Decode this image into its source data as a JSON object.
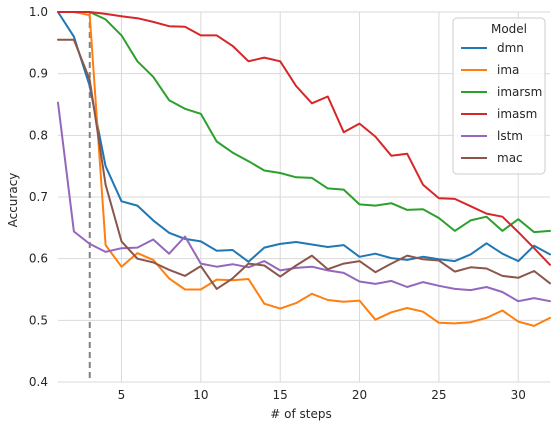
{
  "chart_data": {
    "type": "line",
    "xlabel": "# of steps",
    "ylabel": "Accuracy",
    "xlim": [
      1,
      32
    ],
    "ylim": [
      0.4,
      1.0
    ],
    "xticks": [
      5,
      10,
      15,
      20,
      25,
      30
    ],
    "yticks": [
      0.4,
      0.5,
      0.6,
      0.7,
      0.8,
      0.9,
      1.0
    ],
    "grid": true,
    "legend": {
      "title": "Model",
      "placement": "top-right"
    },
    "vline": {
      "x": 3,
      "style": "dashed",
      "color": "#808080"
    },
    "x": [
      1,
      2,
      3,
      4,
      5,
      6,
      7,
      8,
      9,
      10,
      11,
      12,
      13,
      14,
      15,
      16,
      17,
      18,
      19,
      20,
      21,
      22,
      23,
      24,
      25,
      26,
      27,
      28,
      29,
      30,
      31,
      32
    ],
    "series": [
      {
        "name": "dmn",
        "color": "#1f77b4",
        "values": [
          1.0,
          0.96,
          0.88,
          0.75,
          0.693,
          0.686,
          0.662,
          0.642,
          0.632,
          0.628,
          0.613,
          0.614,
          0.595,
          0.618,
          0.624,
          0.627,
          0.623,
          0.619,
          0.622,
          0.603,
          0.608,
          0.601,
          0.598,
          0.603,
          0.599,
          0.596,
          0.607,
          0.625,
          0.608,
          0.596,
          0.621,
          0.607
        ]
      },
      {
        "name": "ima",
        "color": "#ff7f0e",
        "values": [
          1.0,
          1.0,
          0.995,
          0.622,
          0.587,
          0.609,
          0.598,
          0.568,
          0.55,
          0.55,
          0.566,
          0.565,
          0.567,
          0.527,
          0.519,
          0.528,
          0.543,
          0.533,
          0.53,
          0.532,
          0.501,
          0.513,
          0.52,
          0.514,
          0.496,
          0.495,
          0.497,
          0.504,
          0.516,
          0.498,
          0.491,
          0.504
        ]
      },
      {
        "name": "imarsm",
        "color": "#2ca02c",
        "values": [
          1.0,
          1.0,
          1.0,
          0.988,
          0.962,
          0.92,
          0.895,
          0.857,
          0.843,
          0.835,
          0.79,
          0.772,
          0.758,
          0.743,
          0.739,
          0.732,
          0.731,
          0.714,
          0.712,
          0.688,
          0.686,
          0.69,
          0.679,
          0.68,
          0.666,
          0.645,
          0.662,
          0.668,
          0.645,
          0.664,
          0.643,
          0.645
        ]
      },
      {
        "name": "imasm",
        "color": "#d62728",
        "values": [
          1.0,
          1.0,
          1.0,
          0.997,
          0.993,
          0.99,
          0.984,
          0.977,
          0.976,
          0.962,
          0.962,
          0.945,
          0.92,
          0.926,
          0.92,
          0.88,
          0.852,
          0.863,
          0.805,
          0.819,
          0.798,
          0.767,
          0.77,
          0.72,
          0.698,
          0.697,
          0.685,
          0.673,
          0.668,
          0.643,
          0.617,
          0.59
        ]
      },
      {
        "name": "lstm",
        "color": "#9467bd",
        "values": [
          0.853,
          0.644,
          0.624,
          0.611,
          0.617,
          0.618,
          0.631,
          0.608,
          0.636,
          0.592,
          0.587,
          0.591,
          0.586,
          0.596,
          0.581,
          0.585,
          0.587,
          0.581,
          0.577,
          0.563,
          0.559,
          0.564,
          0.554,
          0.562,
          0.556,
          0.551,
          0.549,
          0.554,
          0.546,
          0.531,
          0.536,
          0.531
        ]
      },
      {
        "name": "mac",
        "color": "#8c564b",
        "values": [
          0.955,
          0.955,
          0.89,
          0.72,
          0.628,
          0.6,
          0.594,
          0.582,
          0.572,
          0.588,
          0.551,
          0.568,
          0.592,
          0.589,
          0.571,
          0.589,
          0.605,
          0.583,
          0.592,
          0.596,
          0.578,
          0.592,
          0.605,
          0.599,
          0.597,
          0.579,
          0.586,
          0.584,
          0.572,
          0.569,
          0.58,
          0.56
        ]
      }
    ]
  }
}
